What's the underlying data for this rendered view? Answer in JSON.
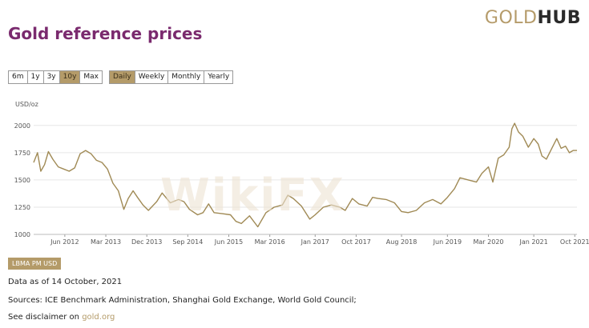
{
  "logo": {
    "part1": "GOLD",
    "part2": "HUB"
  },
  "title": "Gold reference prices",
  "range_buttons": [
    {
      "label": "6m",
      "active": false
    },
    {
      "label": "1y",
      "active": false
    },
    {
      "label": "3y",
      "active": false
    },
    {
      "label": "10y",
      "active": true
    },
    {
      "label": "Max",
      "active": false
    }
  ],
  "frequency_buttons": [
    {
      "label": "Daily",
      "active": true
    },
    {
      "label": "Weekly",
      "active": false
    },
    {
      "label": "Monthly",
      "active": false
    },
    {
      "label": "Yearly",
      "active": false
    }
  ],
  "series_label": "LBMA PM USD",
  "data_as_of": "Data as of 14 October, 2021",
  "sources": "Sources: ICE Benchmark Administration, Shanghai Gold Exchange, World Gold Council;",
  "disclaimer_prefix": "See disclaimer on",
  "disclaimer_link": "gold.org",
  "watermark": "WikiFX",
  "colors": {
    "line": "#a08a55",
    "accent": "#b49b69",
    "title": "#7a2a6e",
    "grid": "#e6e6e6"
  },
  "chart_data": {
    "type": "line",
    "ylabel": "USD/oz",
    "ylim": [
      1000,
      2050
    ],
    "yticks": [
      1000,
      1250,
      1500,
      1750,
      2000
    ],
    "xlim": [
      2011.85,
      2021.79
    ],
    "xticks": [
      {
        "pos": 2012.42,
        "label": "Jun 2012"
      },
      {
        "pos": 2013.17,
        "label": "Mar 2013"
      },
      {
        "pos": 2013.92,
        "label": "Dec 2013"
      },
      {
        "pos": 2014.67,
        "label": "Sep 2014"
      },
      {
        "pos": 2015.42,
        "label": "Jun 2015"
      },
      {
        "pos": 2016.17,
        "label": "Mar 2016"
      },
      {
        "pos": 2017.0,
        "label": "Jan 2017"
      },
      {
        "pos": 2017.75,
        "label": "Oct 2017"
      },
      {
        "pos": 2018.58,
        "label": "Aug 2018"
      },
      {
        "pos": 2019.42,
        "label": "Jun 2019"
      },
      {
        "pos": 2020.17,
        "label": "Mar 2020"
      },
      {
        "pos": 2021.0,
        "label": "Jan 2021"
      },
      {
        "pos": 2021.75,
        "label": "Oct 2021"
      }
    ],
    "grid": true,
    "series": [
      {
        "name": "LBMA PM USD",
        "points": [
          [
            2011.85,
            1660
          ],
          [
            2011.92,
            1750
          ],
          [
            2011.98,
            1580
          ],
          [
            2012.05,
            1640
          ],
          [
            2012.12,
            1760
          ],
          [
            2012.2,
            1690
          ],
          [
            2012.3,
            1620
          ],
          [
            2012.4,
            1600
          ],
          [
            2012.5,
            1580
          ],
          [
            2012.6,
            1610
          ],
          [
            2012.7,
            1740
          ],
          [
            2012.8,
            1770
          ],
          [
            2012.9,
            1740
          ],
          [
            2013.0,
            1680
          ],
          [
            2013.1,
            1660
          ],
          [
            2013.2,
            1600
          ],
          [
            2013.3,
            1470
          ],
          [
            2013.4,
            1400
          ],
          [
            2013.5,
            1230
          ],
          [
            2013.58,
            1330
          ],
          [
            2013.67,
            1400
          ],
          [
            2013.75,
            1340
          ],
          [
            2013.85,
            1270
          ],
          [
            2013.95,
            1220
          ],
          [
            2014.1,
            1300
          ],
          [
            2014.2,
            1380
          ],
          [
            2014.35,
            1290
          ],
          [
            2014.5,
            1320
          ],
          [
            2014.6,
            1300
          ],
          [
            2014.7,
            1230
          ],
          [
            2014.85,
            1180
          ],
          [
            2014.95,
            1200
          ],
          [
            2015.05,
            1280
          ],
          [
            2015.15,
            1200
          ],
          [
            2015.3,
            1190
          ],
          [
            2015.45,
            1180
          ],
          [
            2015.55,
            1120
          ],
          [
            2015.65,
            1100
          ],
          [
            2015.8,
            1170
          ],
          [
            2015.95,
            1070
          ],
          [
            2016.1,
            1200
          ],
          [
            2016.25,
            1250
          ],
          [
            2016.4,
            1270
          ],
          [
            2016.5,
            1360
          ],
          [
            2016.6,
            1330
          ],
          [
            2016.75,
            1260
          ],
          [
            2016.9,
            1140
          ],
          [
            2017.0,
            1180
          ],
          [
            2017.15,
            1250
          ],
          [
            2017.3,
            1270
          ],
          [
            2017.45,
            1250
          ],
          [
            2017.55,
            1220
          ],
          [
            2017.68,
            1330
          ],
          [
            2017.8,
            1280
          ],
          [
            2017.95,
            1260
          ],
          [
            2018.05,
            1340
          ],
          [
            2018.15,
            1330
          ],
          [
            2018.3,
            1320
          ],
          [
            2018.45,
            1290
          ],
          [
            2018.58,
            1210
          ],
          [
            2018.7,
            1200
          ],
          [
            2018.85,
            1220
          ],
          [
            2019.0,
            1290
          ],
          [
            2019.15,
            1320
          ],
          [
            2019.3,
            1280
          ],
          [
            2019.42,
            1340
          ],
          [
            2019.55,
            1420
          ],
          [
            2019.65,
            1520
          ],
          [
            2019.8,
            1500
          ],
          [
            2019.95,
            1480
          ],
          [
            2020.05,
            1560
          ],
          [
            2020.17,
            1620
          ],
          [
            2020.25,
            1480
          ],
          [
            2020.35,
            1700
          ],
          [
            2020.45,
            1730
          ],
          [
            2020.55,
            1800
          ],
          [
            2020.6,
            1970
          ],
          [
            2020.65,
            2020
          ],
          [
            2020.72,
            1940
          ],
          [
            2020.8,
            1900
          ],
          [
            2020.9,
            1800
          ],
          [
            2021.0,
            1880
          ],
          [
            2021.08,
            1830
          ],
          [
            2021.15,
            1720
          ],
          [
            2021.23,
            1690
          ],
          [
            2021.32,
            1780
          ],
          [
            2021.42,
            1880
          ],
          [
            2021.5,
            1790
          ],
          [
            2021.58,
            1810
          ],
          [
            2021.65,
            1750
          ],
          [
            2021.72,
            1770
          ],
          [
            2021.79,
            1770
          ]
        ]
      }
    ]
  }
}
